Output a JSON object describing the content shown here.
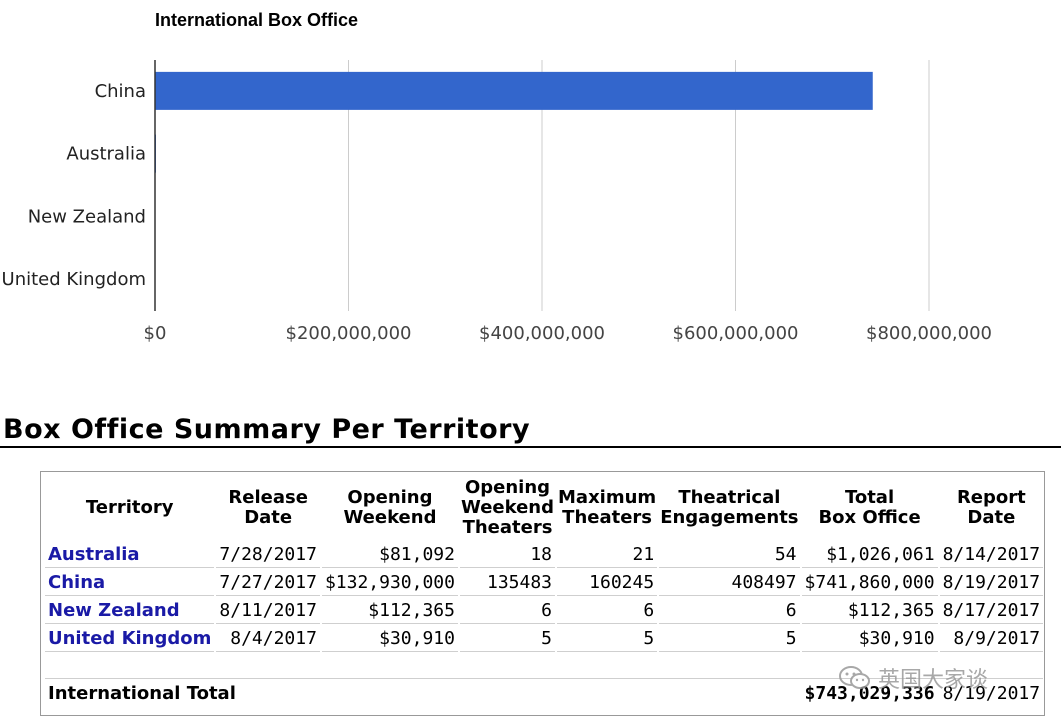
{
  "chart_data": {
    "type": "bar",
    "orientation": "horizontal",
    "title": "International Box Office",
    "categories": [
      "China",
      "Australia",
      "New Zealand",
      "United Kingdom"
    ],
    "values": [
      741860000,
      1026061,
      112365,
      30910
    ],
    "xlim": [
      0,
      800000000
    ],
    "xticks": [
      0,
      200000000,
      400000000,
      600000000,
      800000000
    ],
    "xtick_labels": [
      "$0",
      "$200,000,000",
      "$400,000,000",
      "$600,000,000",
      "$800,000,000"
    ],
    "bar_color": "#3366cc",
    "grid": true
  },
  "summary": {
    "title": "Box Office Summary Per Territory",
    "headers": {
      "territory": "Territory",
      "release": [
        "Release",
        "Date"
      ],
      "opening": [
        "Opening",
        "Weekend"
      ],
      "opening_theaters": [
        "Opening",
        "Weekend",
        "Theaters"
      ],
      "max_theaters": [
        "Maximum",
        "Theaters"
      ],
      "engagements": [
        "Theatrical",
        "Engagements"
      ],
      "total": [
        "Total",
        "Box Office"
      ],
      "report": [
        "Report",
        "Date"
      ]
    },
    "rows": [
      {
        "territory": "Australia",
        "release": "7/28/2017",
        "opening": "$81,092",
        "opening_theaters": "18",
        "max_theaters": "21",
        "engagements": "54",
        "total": "$1,026,061",
        "report": "8/14/2017"
      },
      {
        "territory": "China",
        "release": "7/27/2017",
        "opening": "$132,930,000",
        "opening_theaters": "135483",
        "max_theaters": "160245",
        "engagements": "408497",
        "total": "$741,860,000",
        "report": "8/19/2017"
      },
      {
        "territory": "New Zealand",
        "release": "8/11/2017",
        "opening": "$112,365",
        "opening_theaters": "6",
        "max_theaters": "6",
        "engagements": "6",
        "total": "$112,365",
        "report": "8/17/2017"
      },
      {
        "territory": "United Kingdom",
        "release": "8/4/2017",
        "opening": "$30,910",
        "opening_theaters": "5",
        "max_theaters": "5",
        "engagements": "5",
        "total": "$30,910",
        "report": "8/9/2017"
      }
    ],
    "total_row": {
      "label": "International Total",
      "total": "$743,029,336",
      "report": "8/19/2017"
    },
    "link_color": "#1a1aa6"
  },
  "watermark": {
    "text": "英国大家谈",
    "icon": "wechat-icon"
  }
}
